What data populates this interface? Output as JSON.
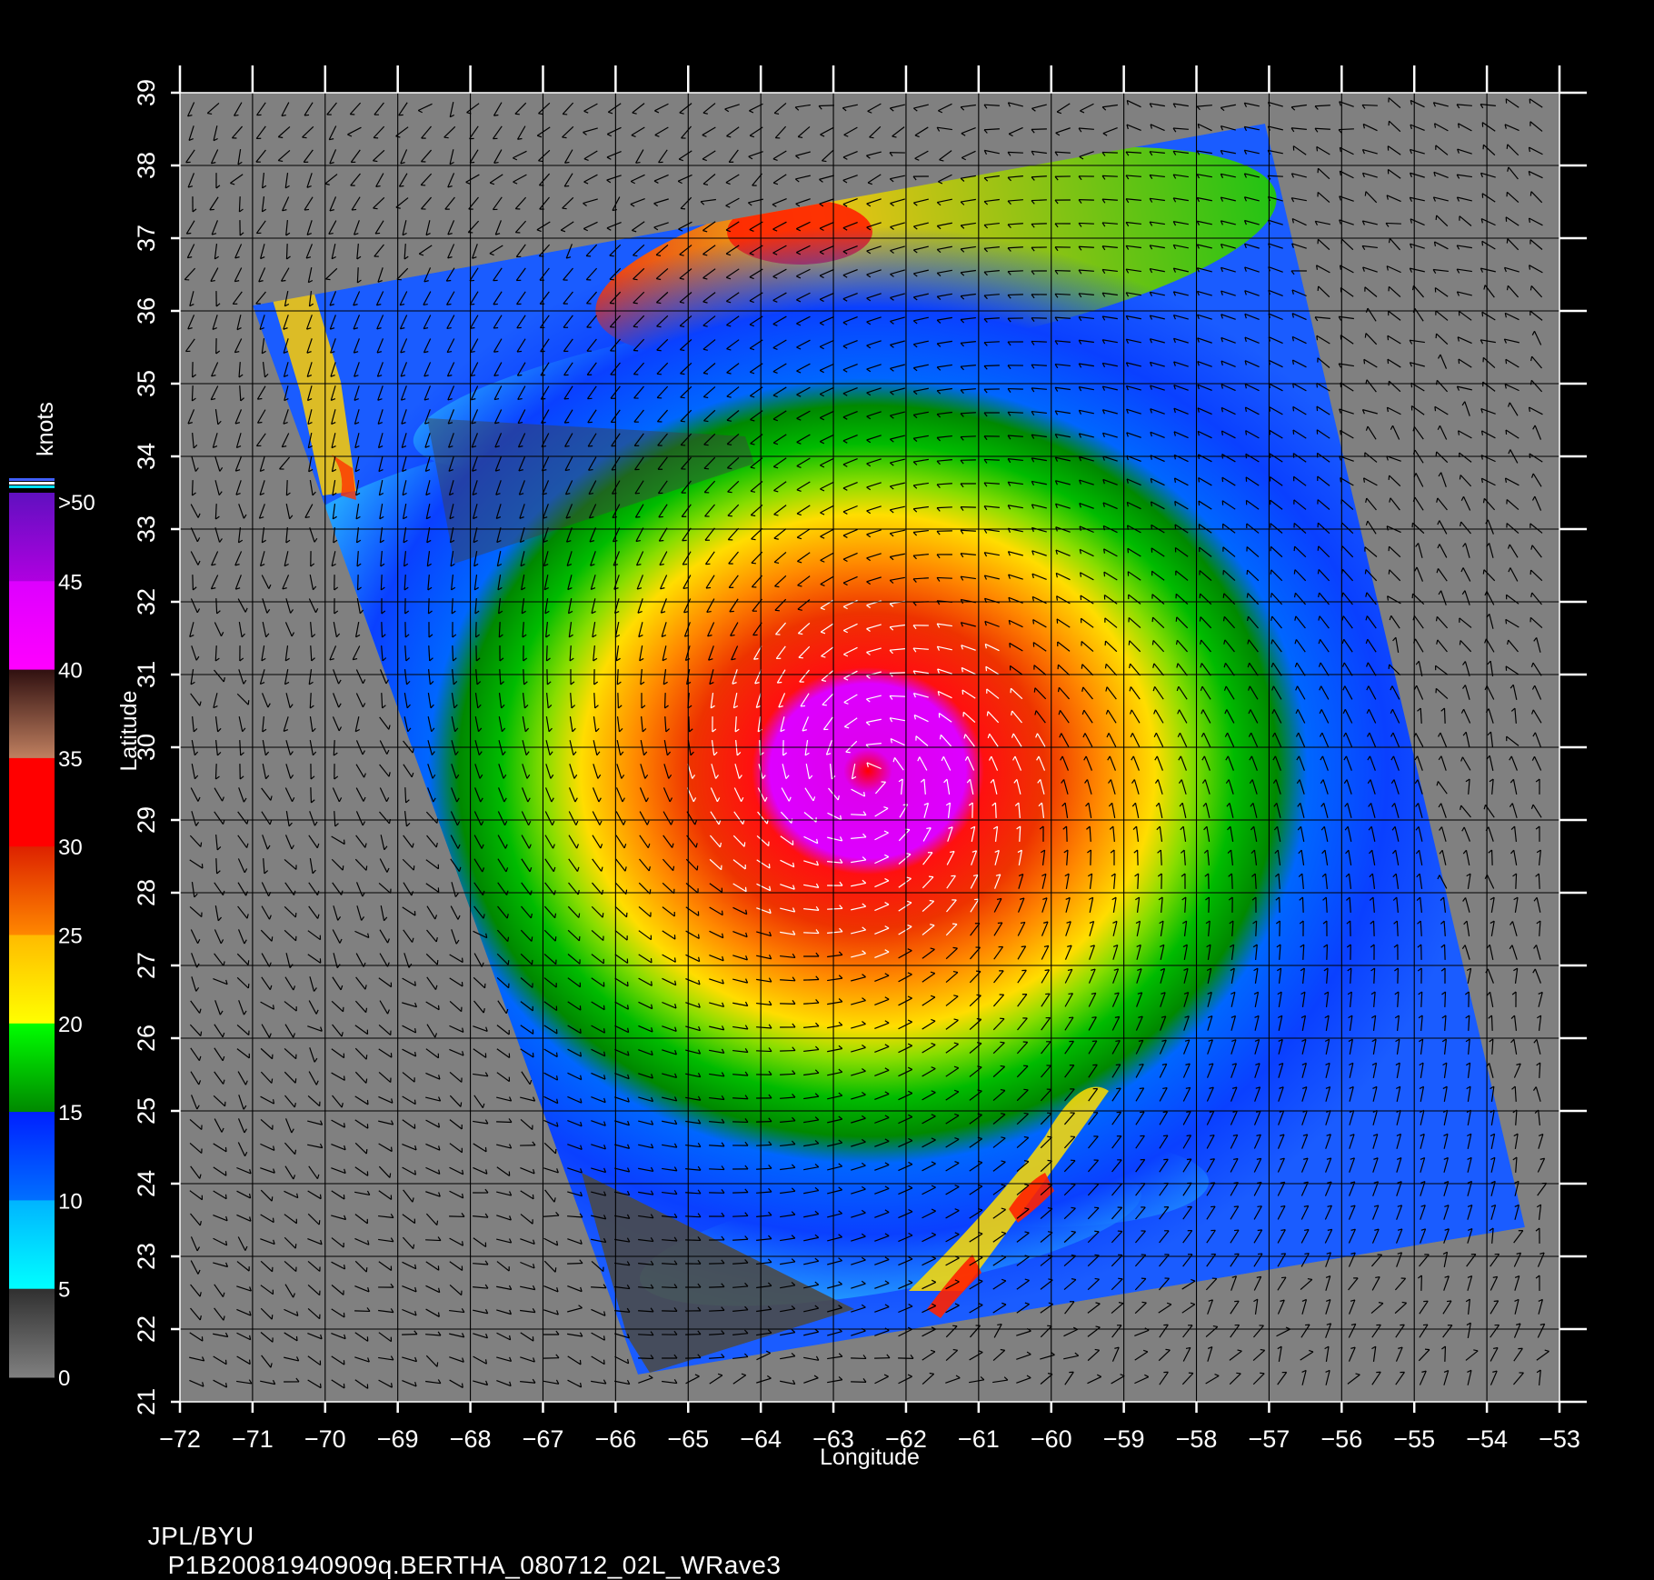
{
  "map": {
    "x_axis_title": "Longitude",
    "y_axis_title": "Latitude",
    "lon_ticks": [
      "-72",
      "-71",
      "-70",
      "-69",
      "-68",
      "-67",
      "-66",
      "-65",
      "-64",
      "-63",
      "-62",
      "-61",
      "-60",
      "-59",
      "-58",
      "-57",
      "-56",
      "-55",
      "-54",
      "-53"
    ],
    "lat_ticks": [
      "21",
      "22",
      "23",
      "24",
      "25",
      "26",
      "27",
      "28",
      "29",
      "30",
      "31",
      "32",
      "33",
      "34",
      "35",
      "36",
      "37",
      "38",
      "39"
    ],
    "lon_range": [
      -72,
      -53
    ],
    "lat_range": [
      21,
      39
    ],
    "storm_center": {
      "lon": -62.5,
      "lat": 29.6
    },
    "background_color": "#808080",
    "grid_color": "#000000"
  },
  "legend": {
    "unit": "knots",
    "labels": [
      ">50",
      "45",
      "40",
      "35",
      "30",
      "25",
      "20",
      "15",
      "10",
      "5",
      "0"
    ],
    "colors": {
      "0-5": [
        "#808080",
        "#303030"
      ],
      "5-10": [
        "#00ffff",
        "#00b4ff"
      ],
      "10-15": [
        "#0070ff",
        "#0020ff"
      ],
      "15-20": [
        "#008800",
        "#00ff00"
      ],
      "20-25": [
        "#ffff00",
        "#ffbb00"
      ],
      "25-30": [
        "#ff8800",
        "#dd2200"
      ],
      "30-35": [
        "#ff0000",
        "#ff0000"
      ],
      "35-40": [
        "#c08060",
        "#301010"
      ],
      "40-45": [
        "#ff00ff",
        "#dd00ff"
      ],
      "45-50": [
        "#b000e0",
        "#6010c0"
      ]
    }
  },
  "footer": {
    "credit": "JPL/BYU",
    "file_id": "P1B20081940909q.BERTHA_080712_02L_WRave3"
  }
}
